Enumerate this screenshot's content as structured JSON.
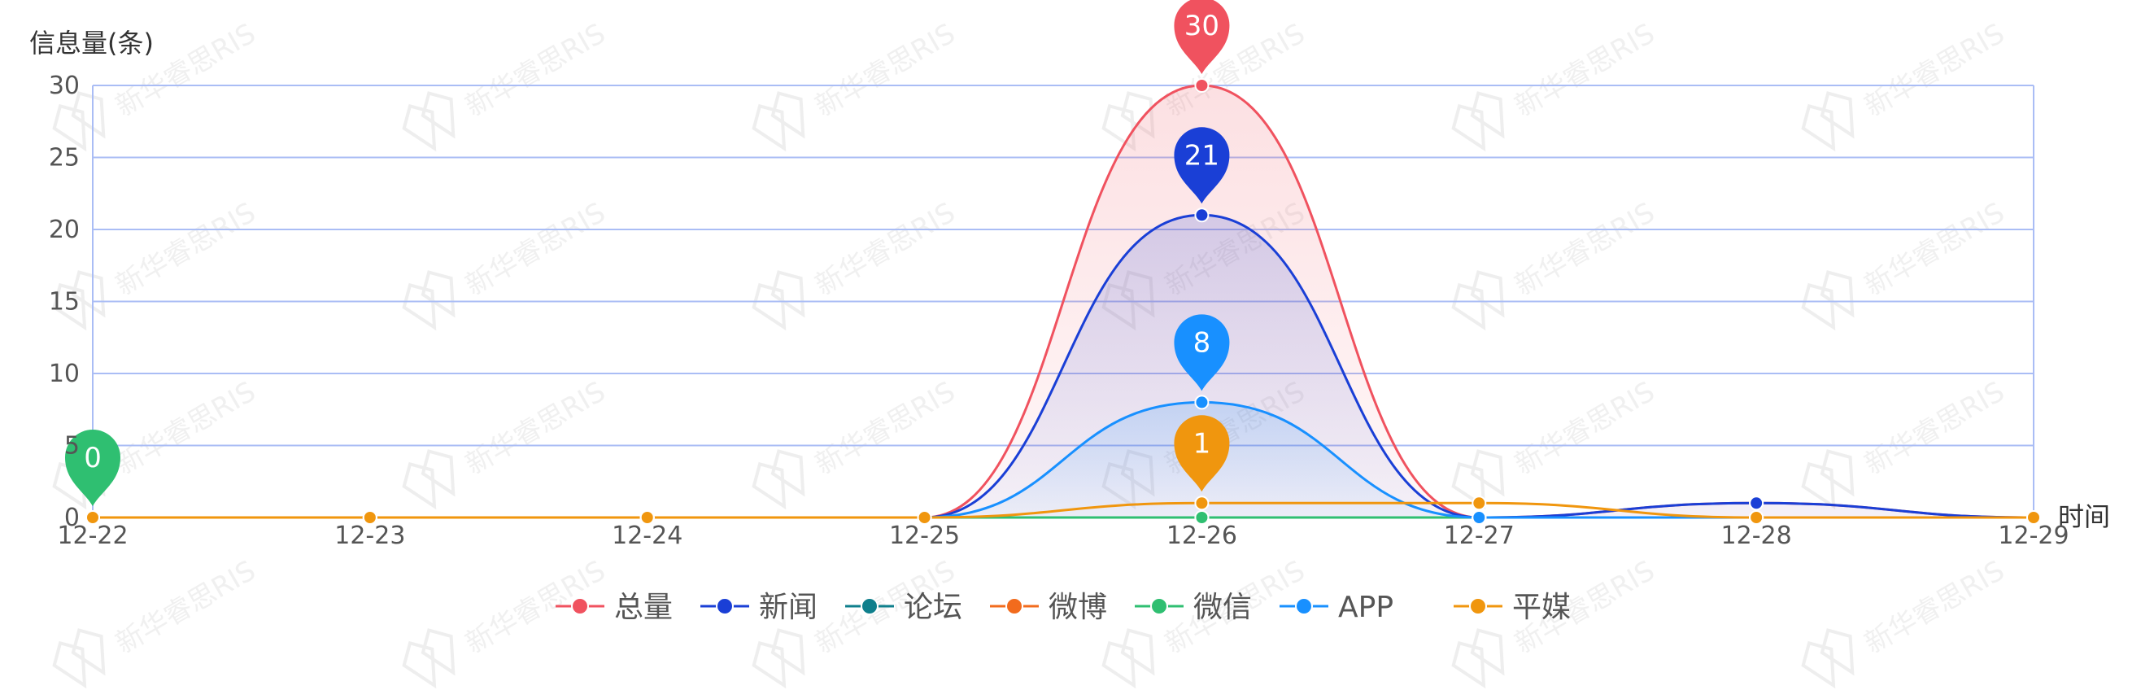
{
  "chart_data": {
    "type": "line",
    "ylabel": "信息量(条)",
    "xlabel": "时间",
    "categories": [
      "12-22",
      "12-23",
      "12-24",
      "12-25",
      "12-26",
      "12-27",
      "12-28",
      "12-29"
    ],
    "ylim": [
      0,
      30
    ],
    "yticks": [
      0,
      5,
      10,
      15,
      20,
      25,
      30
    ],
    "grid": true,
    "legend_position": "bottom",
    "series": [
      {
        "name": "总量",
        "color": "#f0525f",
        "values": [
          0,
          0,
          0,
          0,
          30,
          0,
          1,
          0
        ]
      },
      {
        "name": "新闻",
        "color": "#1a3fd6",
        "values": [
          0,
          0,
          0,
          0,
          21,
          0,
          1,
          0
        ]
      },
      {
        "name": "论坛",
        "color": "#0f7f8c",
        "values": [
          0,
          0,
          0,
          0,
          0,
          0,
          0,
          0
        ]
      },
      {
        "name": "微博",
        "color": "#f26b1d",
        "values": [
          0,
          0,
          0,
          0,
          0,
          0,
          0,
          0
        ]
      },
      {
        "name": "微信",
        "color": "#2fbf71",
        "values": [
          0,
          0,
          0,
          0,
          0,
          0,
          0,
          0
        ]
      },
      {
        "name": "APP",
        "color": "#1890ff",
        "values": [
          0,
          0,
          0,
          0,
          8,
          0,
          0,
          0
        ]
      },
      {
        "name": "平媒",
        "color": "#f0960e",
        "values": [
          0,
          0,
          0,
          0,
          1,
          1,
          0,
          0
        ]
      }
    ],
    "annotations": [
      {
        "label": "30",
        "series": "总量",
        "category": "12-26",
        "value": 30
      },
      {
        "label": "21",
        "series": "新闻",
        "category": "12-26",
        "value": 21
      },
      {
        "label": "8",
        "series": "APP",
        "category": "12-26",
        "value": 8
      },
      {
        "label": "1",
        "series": "平媒",
        "category": "12-26",
        "value": 1
      },
      {
        "label": "0",
        "series": "微信",
        "category": "12-22",
        "value": 0
      }
    ],
    "watermark": "新华睿思RIS"
  }
}
